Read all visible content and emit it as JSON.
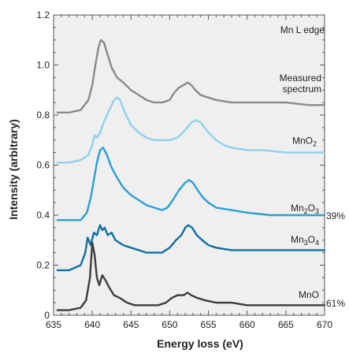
{
  "chart_data": {
    "type": "line",
    "title": "",
    "xlabel": "Energy loss (eV)",
    "ylabel": "Intensity (arbitrary)",
    "xlim": [
      635,
      670
    ],
    "ylim": [
      0,
      1.2
    ],
    "x_ticks": [
      "635",
      "640",
      "645",
      "650",
      "655",
      "660",
      "665",
      "670"
    ],
    "y_ticks": [
      "0",
      "0.2",
      "0.4",
      "0.6",
      "0.8",
      "1.0",
      "1.2"
    ],
    "grid": false,
    "corner_annotation": "Mn L edge",
    "series": [
      {
        "name": "Measured spectrum",
        "label_lines": [
          "Measured",
          "spectrum"
        ],
        "color": "#8a8a8a",
        "x": [
          635.5,
          637,
          638.5,
          639.5,
          640.0,
          640.4,
          640.8,
          641.1,
          641.5,
          642.0,
          642.5,
          643.2,
          644,
          645,
          646,
          647,
          648,
          649,
          650,
          650.6,
          651.2,
          651.8,
          652.3,
          652.8,
          653.3,
          654,
          655,
          656,
          658,
          660,
          662,
          665,
          668,
          670
        ],
        "y": [
          0.81,
          0.81,
          0.82,
          0.86,
          0.92,
          1.0,
          1.07,
          1.1,
          1.09,
          1.04,
          0.99,
          0.95,
          0.93,
          0.9,
          0.88,
          0.86,
          0.85,
          0.85,
          0.86,
          0.89,
          0.91,
          0.92,
          0.93,
          0.92,
          0.9,
          0.88,
          0.87,
          0.86,
          0.85,
          0.85,
          0.85,
          0.85,
          0.84,
          0.84
        ]
      },
      {
        "name": "MnO2",
        "label_main": "MnO",
        "label_sub": "2",
        "color": "#8fd0ee",
        "x": [
          635.5,
          637,
          638.5,
          639.5,
          640.0,
          640.3,
          640.6,
          641.0,
          641.6,
          642.2,
          642.8,
          643.2,
          643.6,
          644.2,
          645,
          646,
          647,
          648,
          649,
          650,
          651,
          652,
          652.8,
          653.4,
          654,
          655,
          656,
          657,
          658,
          660,
          662,
          665,
          670
        ],
        "y": [
          0.61,
          0.61,
          0.62,
          0.64,
          0.68,
          0.72,
          0.71,
          0.73,
          0.78,
          0.82,
          0.86,
          0.87,
          0.86,
          0.81,
          0.76,
          0.73,
          0.71,
          0.7,
          0.7,
          0.7,
          0.71,
          0.74,
          0.77,
          0.78,
          0.77,
          0.73,
          0.7,
          0.68,
          0.67,
          0.66,
          0.66,
          0.65,
          0.65
        ]
      },
      {
        "name": "Mn2O3",
        "label_main": "Mn",
        "label_sub1": "2",
        "label_mid": "O",
        "label_sub2": "3",
        "percent_label": "39%",
        "color": "#2a9fd6",
        "x": [
          635.5,
          637,
          638.5,
          639.3,
          639.8,
          640.2,
          640.6,
          641.0,
          641.4,
          641.9,
          642.5,
          643.2,
          644,
          645,
          646,
          647,
          648,
          649,
          649.7,
          650.4,
          651.2,
          652,
          652.5,
          653,
          653.6,
          654.3,
          655,
          656,
          658,
          660,
          663,
          666,
          670
        ],
        "y": [
          0.38,
          0.38,
          0.38,
          0.41,
          0.47,
          0.54,
          0.61,
          0.66,
          0.67,
          0.64,
          0.59,
          0.55,
          0.51,
          0.48,
          0.46,
          0.44,
          0.43,
          0.42,
          0.43,
          0.46,
          0.5,
          0.53,
          0.54,
          0.53,
          0.5,
          0.47,
          0.45,
          0.43,
          0.42,
          0.41,
          0.4,
          0.4,
          0.4
        ]
      },
      {
        "name": "Mn3O4",
        "label_main": "Mn",
        "label_sub1": "3",
        "label_mid": "O",
        "label_sub2": "4",
        "color": "#0f6fa3",
        "x": [
          635.5,
          637,
          638.5,
          639.1,
          639.4,
          639.8,
          640.2,
          640.6,
          641.0,
          641.3,
          641.6,
          642.0,
          642.5,
          643,
          644,
          645,
          646,
          647,
          648,
          649,
          650,
          650.8,
          651.5,
          652,
          652.4,
          652.9,
          653.5,
          654.2,
          655,
          656,
          658,
          660,
          663,
          666,
          670
        ],
        "y": [
          0.18,
          0.18,
          0.2,
          0.25,
          0.31,
          0.28,
          0.33,
          0.32,
          0.36,
          0.34,
          0.35,
          0.32,
          0.33,
          0.3,
          0.28,
          0.27,
          0.26,
          0.25,
          0.25,
          0.25,
          0.27,
          0.3,
          0.32,
          0.35,
          0.36,
          0.35,
          0.32,
          0.3,
          0.28,
          0.27,
          0.26,
          0.26,
          0.26,
          0.26,
          0.26
        ]
      },
      {
        "name": "MnO",
        "label_main": "MnO",
        "percent_label": "61%",
        "color": "#3d3d3d",
        "x": [
          635.5,
          637,
          638.5,
          639.2,
          639.7,
          640.0,
          640.3,
          640.6,
          640.9,
          641.3,
          641.7,
          642.2,
          642.8,
          643.5,
          644.5,
          645.5,
          647,
          648.5,
          649.5,
          650.3,
          651,
          651.8,
          652.3,
          652.8,
          653.5,
          654.5,
          656,
          658,
          660,
          663,
          666,
          670
        ],
        "y": [
          0.02,
          0.02,
          0.03,
          0.06,
          0.15,
          0.29,
          0.24,
          0.15,
          0.12,
          0.16,
          0.14,
          0.11,
          0.08,
          0.07,
          0.05,
          0.04,
          0.04,
          0.04,
          0.05,
          0.07,
          0.08,
          0.08,
          0.09,
          0.08,
          0.07,
          0.06,
          0.05,
          0.05,
          0.04,
          0.04,
          0.04,
          0.04
        ]
      }
    ]
  }
}
